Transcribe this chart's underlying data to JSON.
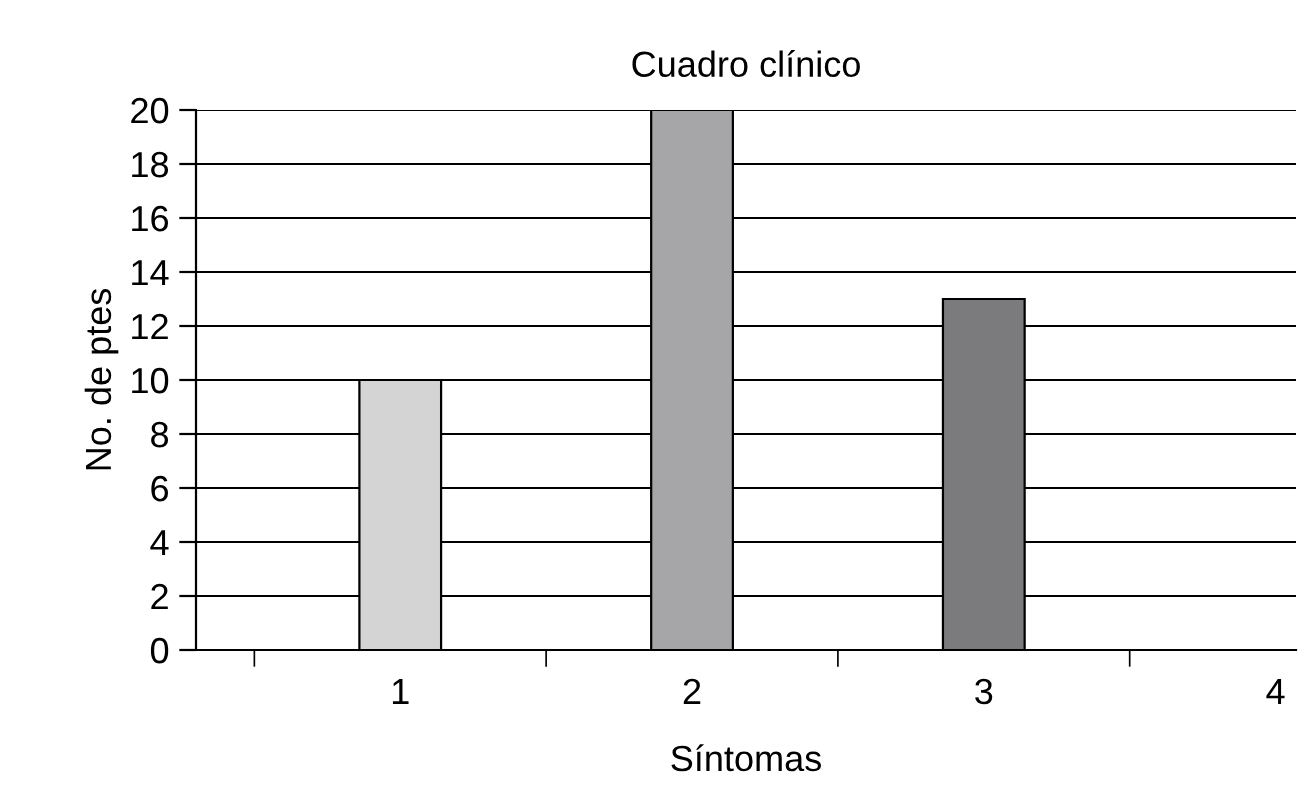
{
  "chart_data": {
    "type": "bar",
    "title": "Cuadro clínico",
    "xlabel": "Síntomas",
    "ylabel": "No. de ptes",
    "categories": [
      "1",
      "2",
      "3",
      "4"
    ],
    "values": [
      10,
      20,
      13,
      null
    ],
    "colors": [
      "#d4d4d4",
      "#a6a6a8",
      "#7b7b7d",
      null
    ],
    "ylim": [
      0,
      20
    ],
    "yticks": [
      0,
      2,
      4,
      6,
      8,
      10,
      12,
      14,
      16,
      18,
      20
    ],
    "grid": "y"
  }
}
